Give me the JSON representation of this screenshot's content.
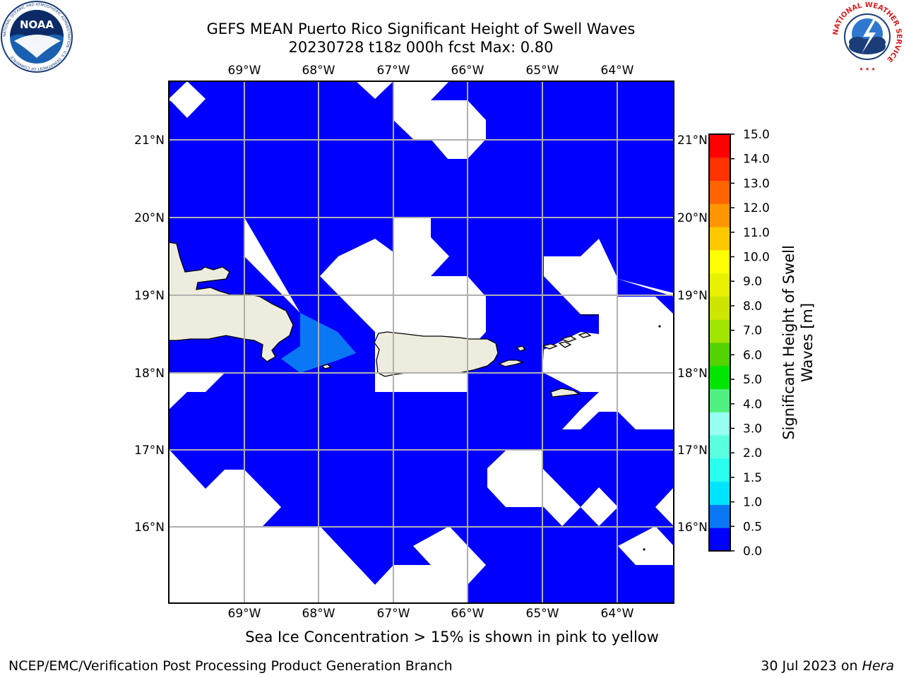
{
  "title": {
    "line1": "GEFS MEAN Puerto Rico Significant Height of Swell Waves",
    "line2": "20230728 t18z 000h fcst   Max: 0.80"
  },
  "map": {
    "lon_labels": [
      "69°W",
      "68°W",
      "67°W",
      "66°W",
      "65°W",
      "64°W"
    ],
    "lat_labels": [
      "21°N",
      "20°N",
      "19°N",
      "18°N",
      "17°N",
      "16°N"
    ],
    "land_color": "#eeecde",
    "grid_color": "#b0b0b0"
  },
  "colorbar": {
    "label_line1": "Significant Height of Swell",
    "label_line2": "Waves [m]",
    "ticks": [
      "0.0",
      "0.5",
      "1.0",
      "1.5",
      "2.0",
      "3.0",
      "4.0",
      "5.0",
      "6.0",
      "7.0",
      "8.0",
      "9.0",
      "10.0",
      "11.0",
      "12.0",
      "13.0",
      "14.0",
      "15.0"
    ],
    "colors": [
      "#0000ff",
      "#0a78f5",
      "#00e5ff",
      "#28ffef",
      "#5affe0",
      "#96fff0",
      "#50f080",
      "#00e600",
      "#52d200",
      "#a0e600",
      "#cce600",
      "#e6f000",
      "#ffff00",
      "#ffc800",
      "#ff9600",
      "#ff6400",
      "#ff3200",
      "#ff0000"
    ]
  },
  "logos": {
    "noaa": {
      "text": "NOAA",
      "ring": "NATIONAL OCEANIC AND ATMOSPHERIC ADMINISTRATION · U.S. DEPARTMENT OF COMMERCE"
    },
    "nws": {
      "ring": "NATIONAL WEATHER SERVICE"
    }
  },
  "footer": {
    "sea_ice_note": "Sea Ice Concentration > 15% is shown in pink to yellow",
    "credit": "NCEP/EMC/Verification Post Processing Product Generation Branch",
    "date_prefix": "30 Jul 2023 on ",
    "date_machine": "Hera"
  }
}
